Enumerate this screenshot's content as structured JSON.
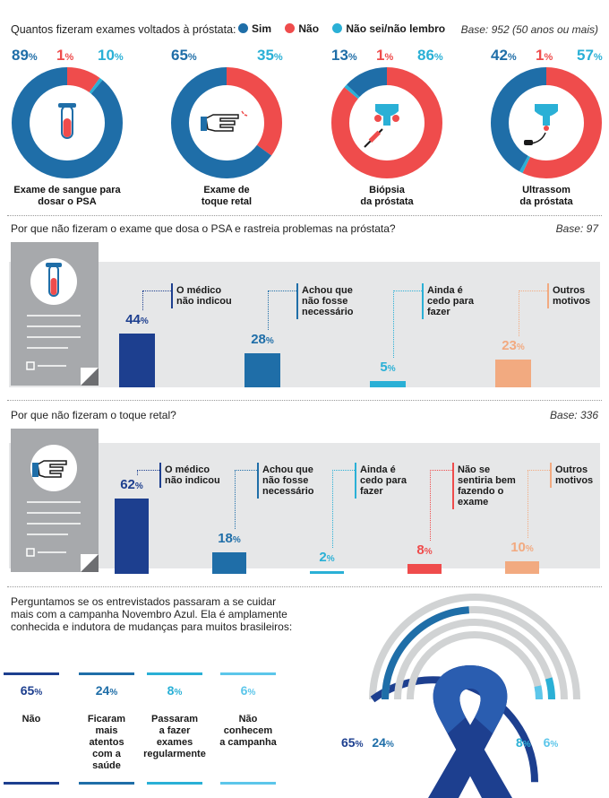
{
  "section1": {
    "title": "Quantos fizeram exames voltados à próstata:",
    "legend": [
      {
        "label": "Sim",
        "color": "#1f6ea8"
      },
      {
        "label": "Não",
        "color": "#ef4c4c"
      },
      {
        "label": "Não sei/não lembro",
        "color": "#2ab0d6"
      }
    ],
    "base": "Base: 952 (50 anos ou mais)"
  },
  "section2": {
    "title": "Por que não fizeram o exame que dosa o PSA e rastreia problemas na próstata?",
    "base": "Base: 97"
  },
  "section3": {
    "title": "Por que não fizeram o toque retal?",
    "base": "Base: 336"
  },
  "section4": {
    "text": [
      "Perguntamos se os entrevistados passaram a se cuidar",
      "mais com a campanha Novembro Azul. Ela é amplamente",
      "conhecida e indutora de mudanças para muitos brasileiros:"
    ],
    "ribbon_left": [
      "65",
      "24"
    ],
    "ribbon_right": [
      "8",
      "6"
    ]
  },
  "pct_sign": "%",
  "chart_data": [
    {
      "type": "pie",
      "subtype": "donut",
      "title": "Quantos fizeram exames voltados à próstata",
      "series_names": [
        "Sim",
        "Não",
        "Não sei/não lembro"
      ],
      "donuts": [
        {
          "label": "Exame de sangue para dosar o PSA",
          "label_lines": [
            "Exame de sangue para",
            "dosar o PSA"
          ],
          "values": [
            89,
            10,
            1
          ],
          "icon": "test-tube-icon"
        },
        {
          "label": "Exame de toque retal",
          "label_lines": [
            "Exame de",
            "toque retal"
          ],
          "values": [
            65,
            35,
            0
          ],
          "icon": "pointing-hand-icon"
        },
        {
          "label": "Biópsia da próstata",
          "label_lines": [
            "Biópsia",
            "da próstata"
          ],
          "values": [
            13,
            86,
            1
          ],
          "icon": "biopsy-needle-icon"
        },
        {
          "label": "Ultrassom da próstata",
          "label_lines": [
            "Ultrassom",
            "da próstata"
          ],
          "values": [
            42,
            57,
            1
          ],
          "icon": "ultrasound-probe-icon"
        }
      ],
      "displayed_labels": [
        [
          "89",
          "1",
          "10"
        ],
        [
          "65",
          "",
          "35"
        ],
        [
          "13",
          "1",
          "86"
        ],
        [
          "42",
          "1",
          "57"
        ]
      ]
    },
    {
      "type": "bar",
      "title": "Por que não fizeram o exame que dosa o PSA e rastreia problemas na próstata?",
      "categories": [
        "O médico não indicou",
        "Achou que não fosse necessário",
        "Ainda é cedo para fazer",
        "Outros motivos"
      ],
      "label_lines": [
        [
          "O médico",
          "não indicou"
        ],
        [
          "Achou que",
          "não fosse",
          "necessário"
        ],
        [
          "Ainda é",
          "cedo para",
          "fazer"
        ],
        [
          "Outros",
          "motivos"
        ]
      ],
      "values": [
        44,
        28,
        5,
        23
      ],
      "colors": [
        "#1d3f8f",
        "#1f6ea8",
        "#2ab0d6",
        "#f2aa80"
      ],
      "ylim": [
        0,
        100
      ]
    },
    {
      "type": "bar",
      "title": "Por que não fizeram o toque retal?",
      "categories": [
        "O médico não indicou",
        "Achou que não fosse necessário",
        "Ainda é cedo para fazer",
        "Não se sentiria bem fazendo o exame",
        "Outros motivos"
      ],
      "label_lines": [
        [
          "O médico",
          "não indicou"
        ],
        [
          "Achou que",
          "não fosse",
          "necessário"
        ],
        [
          "Ainda é",
          "cedo para",
          "fazer"
        ],
        [
          "Não se",
          "sentiria bem",
          "fazendo o",
          "exame"
        ],
        [
          "Outros",
          "motivos"
        ]
      ],
      "values": [
        62,
        18,
        2,
        8,
        10
      ],
      "colors": [
        "#1d3f8f",
        "#1f6ea8",
        "#2ab0d6",
        "#ef4c4c",
        "#f2aa80"
      ],
      "ylim": [
        0,
        100
      ]
    },
    {
      "type": "bar",
      "subtype": "concentric-arcs",
      "title": "Novembro Azul",
      "categories": [
        "Não",
        "Ficaram mais atentos com a saúde",
        "Passaram a fazer exames regularmente",
        "Não conhecem a campanha"
      ],
      "label_lines": [
        [
          "Não"
        ],
        [
          "Ficaram",
          "mais",
          "atentos",
          "com a",
          "saúde"
        ],
        [
          "Passaram",
          "a fazer",
          "exames",
          "regularmente"
        ],
        [
          "Não",
          "conhecem",
          "a campanha"
        ]
      ],
      "values": [
        65,
        24,
        8,
        6
      ],
      "colors": [
        "#1d3f8f",
        "#1f6ea8",
        "#2ab0d6",
        "#5cc6ea"
      ],
      "ylim": [
        0,
        100
      ]
    }
  ]
}
